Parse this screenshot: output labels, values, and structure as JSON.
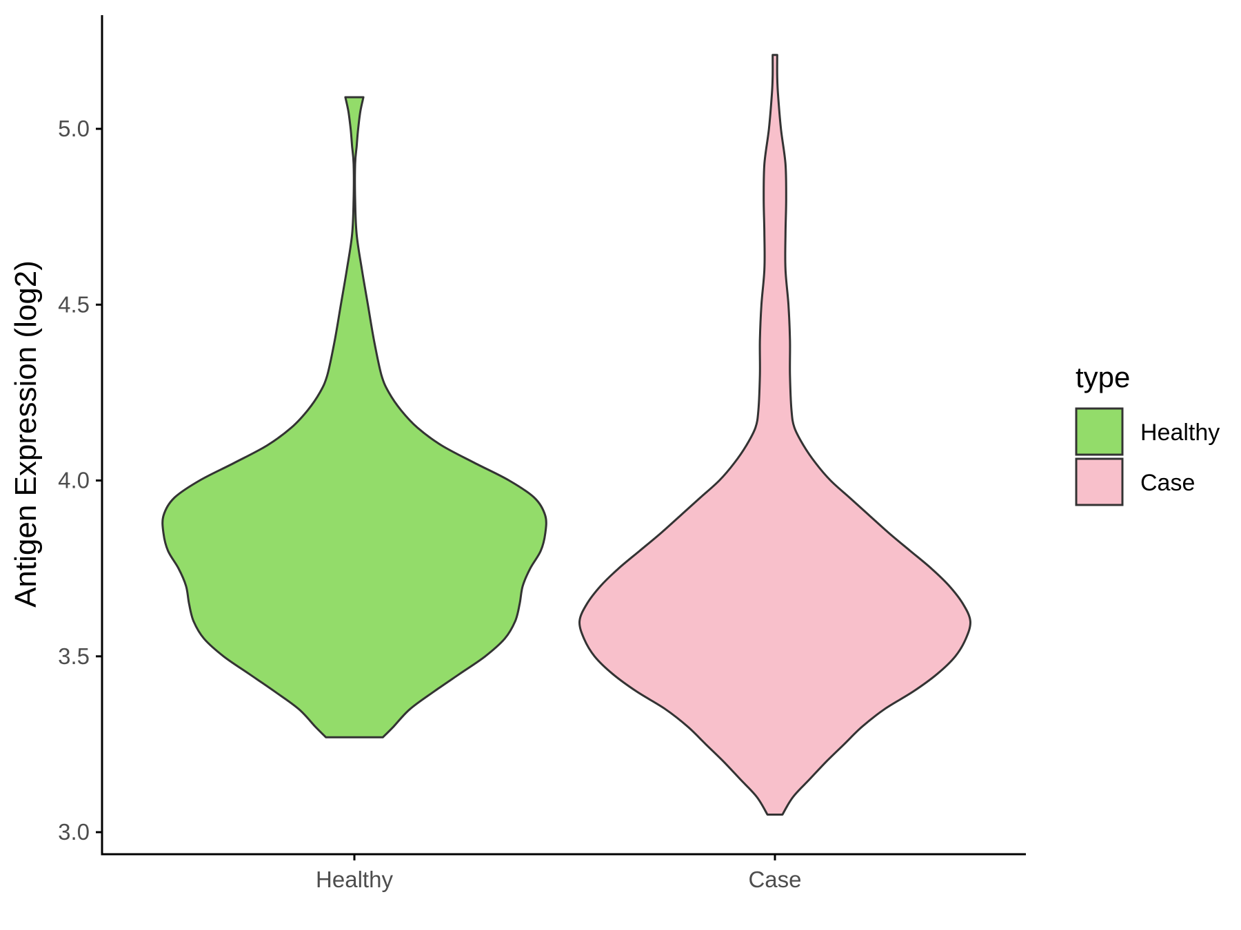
{
  "chart_data": {
    "type": "violin",
    "title": "",
    "xlabel": "",
    "ylabel": "Antigen Expression (log2)",
    "ylim": [
      2.94,
      5.33
    ],
    "yticks": [
      "3.0",
      "3.5",
      "4.0",
      "4.5",
      "5.0"
    ],
    "categories": [
      "Healthy",
      "Case"
    ],
    "series": [
      {
        "name": "Healthy",
        "color": "#93dc6a",
        "min": 3.27,
        "max": 5.09,
        "density": [
          [
            3.27,
            0.19
          ],
          [
            3.3,
            0.26
          ],
          [
            3.35,
            0.37
          ],
          [
            3.4,
            0.53
          ],
          [
            3.45,
            0.7
          ],
          [
            3.5,
            0.87
          ],
          [
            3.55,
            1.0
          ],
          [
            3.6,
            1.07
          ],
          [
            3.65,
            1.1
          ],
          [
            3.7,
            1.12
          ],
          [
            3.75,
            1.17
          ],
          [
            3.8,
            1.24
          ],
          [
            3.85,
            1.27
          ],
          [
            3.9,
            1.27
          ],
          [
            3.95,
            1.2
          ],
          [
            4.0,
            1.03
          ],
          [
            4.05,
            0.8
          ],
          [
            4.1,
            0.58
          ],
          [
            4.15,
            0.42
          ],
          [
            4.2,
            0.31
          ],
          [
            4.25,
            0.23
          ],
          [
            4.3,
            0.18
          ],
          [
            4.4,
            0.13
          ],
          [
            4.5,
            0.09
          ],
          [
            4.6,
            0.05
          ],
          [
            4.7,
            0.015
          ],
          [
            4.8,
            0.005
          ],
          [
            4.9,
            0.005
          ],
          [
            4.95,
            0.015
          ],
          [
            5.0,
            0.025
          ],
          [
            5.05,
            0.04
          ],
          [
            5.09,
            0.06
          ]
        ]
      },
      {
        "name": "Case",
        "color": "#f8c0cb",
        "min": 3.05,
        "max": 5.21,
        "density": [
          [
            3.05,
            0.05
          ],
          [
            3.1,
            0.12
          ],
          [
            3.15,
            0.23
          ],
          [
            3.2,
            0.34
          ],
          [
            3.25,
            0.46
          ],
          [
            3.3,
            0.58
          ],
          [
            3.35,
            0.73
          ],
          [
            3.4,
            0.92
          ],
          [
            3.45,
            1.08
          ],
          [
            3.5,
            1.2
          ],
          [
            3.55,
            1.27
          ],
          [
            3.6,
            1.3
          ],
          [
            3.65,
            1.25
          ],
          [
            3.7,
            1.16
          ],
          [
            3.75,
            1.04
          ],
          [
            3.8,
            0.9
          ],
          [
            3.85,
            0.76
          ],
          [
            3.9,
            0.63
          ],
          [
            3.95,
            0.5
          ],
          [
            4.0,
            0.37
          ],
          [
            4.05,
            0.27
          ],
          [
            4.1,
            0.19
          ],
          [
            4.15,
            0.13
          ],
          [
            4.2,
            0.11
          ],
          [
            4.3,
            0.1
          ],
          [
            4.4,
            0.1
          ],
          [
            4.5,
            0.09
          ],
          [
            4.6,
            0.07
          ],
          [
            4.7,
            0.07
          ],
          [
            4.8,
            0.075
          ],
          [
            4.9,
            0.07
          ],
          [
            5.0,
            0.04
          ],
          [
            5.1,
            0.02
          ],
          [
            5.15,
            0.015
          ],
          [
            5.21,
            0.015
          ]
        ]
      }
    ],
    "legend": {
      "title": "type",
      "position": "right"
    },
    "grid": false
  }
}
